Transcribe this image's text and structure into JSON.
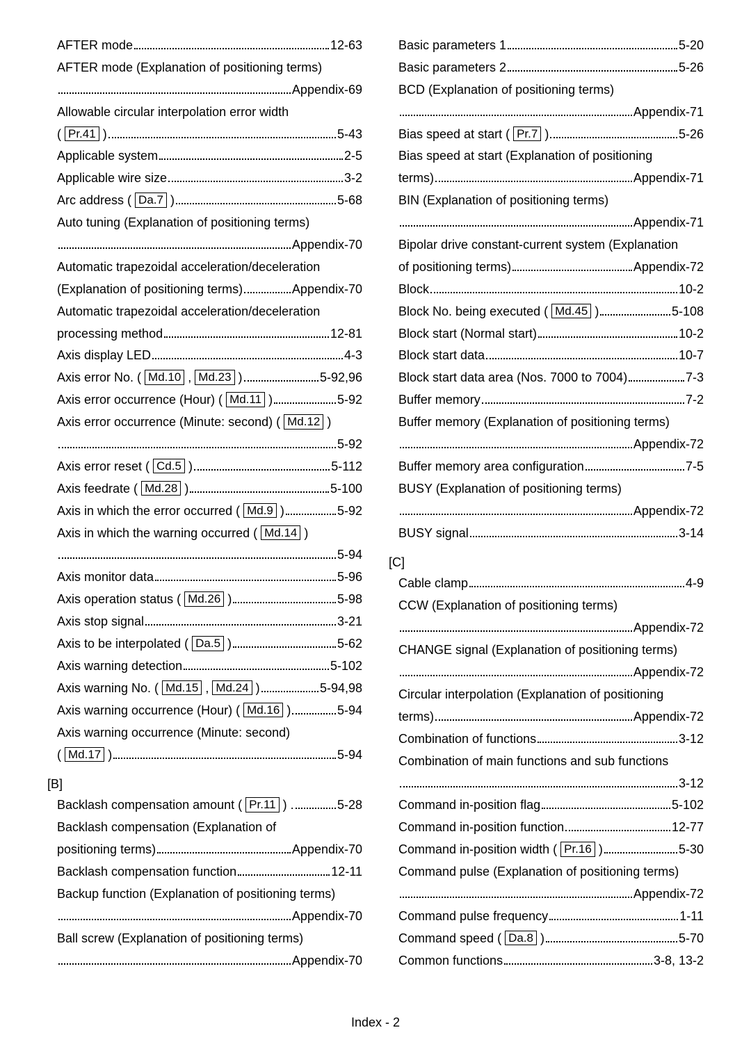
{
  "left": {
    "entries": [
      {
        "type": "row",
        "label": "AFTER mode",
        "page": "12-63"
      },
      {
        "type": "cont",
        "text": "AFTER mode (Explanation of positioning terms)"
      },
      {
        "type": "row",
        "label": "",
        "page": "Appendix-69"
      },
      {
        "type": "cont",
        "text": "Allowable circular interpolation error width"
      },
      {
        "type": "row",
        "label": "( [[Pr.41]] )",
        "page": "5-43"
      },
      {
        "type": "row",
        "label": "Applicable system",
        "page": "2-5"
      },
      {
        "type": "row",
        "label": "Applicable wire size",
        "page": "3-2"
      },
      {
        "type": "row",
        "label": "Arc address ( [[Da.7]] )",
        "page": "5-68"
      },
      {
        "type": "cont",
        "text": "Auto tuning (Explanation of positioning terms)"
      },
      {
        "type": "row",
        "label": "",
        "page": "Appendix-70"
      },
      {
        "type": "cont",
        "text": "Automatic trapezoidal acceleration/deceleration"
      },
      {
        "type": "row",
        "label": "(Explanation of positioning terms)",
        "page": "Appendix-70",
        "tight": true
      },
      {
        "type": "cont",
        "text": "Automatic trapezoidal acceleration/deceleration"
      },
      {
        "type": "row",
        "label": "processing method",
        "page": "12-81"
      },
      {
        "type": "row",
        "label": "Axis display LED",
        "page": "4-3"
      },
      {
        "type": "row",
        "label": "Axis error No. ( [[Md.10]] , [[Md.23]] )",
        "page": "5-92,96"
      },
      {
        "type": "row",
        "label": "Axis error occurrence (Hour) ( [[Md.11]] )",
        "page": "5-92"
      },
      {
        "type": "cont",
        "text": "Axis error occurrence (Minute: second) ( [[Md.12]] )"
      },
      {
        "type": "row",
        "label": "",
        "page": "5-92"
      },
      {
        "type": "row",
        "label": "Axis error reset ( [[Cd.5]] )",
        "page": "5-112"
      },
      {
        "type": "row",
        "label": "Axis feedrate ( [[Md.28]] )",
        "page": "5-100"
      },
      {
        "type": "row",
        "label": "Axis in which the error occurred ( [[Md.9]] )",
        "page": "5-92",
        "tight": true
      },
      {
        "type": "cont",
        "text": "Axis in which the warning occurred ( [[Md.14]] )"
      },
      {
        "type": "row",
        "label": "",
        "page": "5-94"
      },
      {
        "type": "row",
        "label": "Axis monitor data",
        "page": "5-96"
      },
      {
        "type": "row",
        "label": "Axis operation status ( [[Md.26]] )",
        "page": "5-98"
      },
      {
        "type": "row",
        "label": "Axis stop signal",
        "page": "3-21"
      },
      {
        "type": "row",
        "label": "Axis to be interpolated ( [[Da.5]] )",
        "page": "5-62"
      },
      {
        "type": "row",
        "label": "Axis warning detection",
        "page": "5-102"
      },
      {
        "type": "row",
        "label": "Axis warning No. ( [[Md.15]] , [[Md.24]] )",
        "page": "5-94,98"
      },
      {
        "type": "row",
        "label": "Axis warning occurrence (Hour) ( [[Md.16]] )",
        "page": "5-94",
        "tight": true
      },
      {
        "type": "cont",
        "text": "Axis warning occurrence (Minute: second)"
      },
      {
        "type": "row",
        "label": "( [[Md.17]] )",
        "page": "5-94"
      }
    ],
    "section_b": "[B]",
    "b_entries": [
      {
        "type": "row",
        "label": "Backlash compensation amount ( [[Pr.11]] ) .",
        "page": "5-28",
        "tight": true
      },
      {
        "type": "cont",
        "text": "Backlash compensation (Explanation of"
      },
      {
        "type": "row",
        "label": "positioning terms)",
        "page": "Appendix-70"
      },
      {
        "type": "row",
        "label": "Backlash compensation function",
        "page": "12-11"
      },
      {
        "type": "cont",
        "text": "Backup function (Explanation of positioning terms)"
      },
      {
        "type": "row",
        "label": "",
        "page": "Appendix-70"
      },
      {
        "type": "cont",
        "text": "Ball screw (Explanation of positioning terms)"
      },
      {
        "type": "row",
        "label": "",
        "page": "Appendix-70"
      }
    ]
  },
  "right": {
    "entries": [
      {
        "type": "row",
        "label": "Basic parameters 1",
        "page": "5-20"
      },
      {
        "type": "row",
        "label": "Basic parameters 2",
        "page": "5-26"
      },
      {
        "type": "cont",
        "text": "BCD (Explanation of positioning terms)"
      },
      {
        "type": "row",
        "label": "",
        "page": "Appendix-71"
      },
      {
        "type": "row",
        "label": "Bias speed at start ( [[Pr.7]] )",
        "page": "5-26"
      },
      {
        "type": "cont",
        "text": "Bias speed at start (Explanation of positioning"
      },
      {
        "type": "row",
        "label": "terms)",
        "page": "Appendix-71"
      },
      {
        "type": "cont",
        "text": "BIN (Explanation of positioning terms)"
      },
      {
        "type": "row",
        "label": "",
        "page": "Appendix-71"
      },
      {
        "type": "cont",
        "text": "Bipolar drive constant-current system (Explanation"
      },
      {
        "type": "row",
        "label": "of positioning terms)",
        "page": "Appendix-72"
      },
      {
        "type": "row",
        "label": "Block",
        "page": "10-2"
      },
      {
        "type": "row",
        "label": "Block No. being executed ( [[Md.45]] )",
        "page": "5-108"
      },
      {
        "type": "row",
        "label": "Block start (Normal start)",
        "page": "10-2"
      },
      {
        "type": "row",
        "label": "Block start data",
        "page": "10-7"
      },
      {
        "type": "row",
        "label": "Block start data area (Nos. 7000 to 7004)",
        "page": "7-3"
      },
      {
        "type": "row",
        "label": "Buffer memory",
        "page": "7-2"
      },
      {
        "type": "cont",
        "text": "Buffer memory (Explanation of positioning terms)"
      },
      {
        "type": "row",
        "label": "",
        "page": "Appendix-72"
      },
      {
        "type": "row",
        "label": "Buffer memory area configuration",
        "page": "7-5"
      },
      {
        "type": "cont",
        "text": "BUSY (Explanation of positioning terms)"
      },
      {
        "type": "row",
        "label": "",
        "page": "Appendix-72"
      },
      {
        "type": "row",
        "label": "BUSY signal",
        "page": "3-14"
      }
    ],
    "section_c": "[C]",
    "c_entries": [
      {
        "type": "row",
        "label": "Cable clamp",
        "page": "4-9"
      },
      {
        "type": "cont",
        "text": "CCW (Explanation of positioning terms)"
      },
      {
        "type": "row",
        "label": "",
        "page": "Appendix-72"
      },
      {
        "type": "cont",
        "text": "CHANGE signal (Explanation of positioning terms)"
      },
      {
        "type": "row",
        "label": "",
        "page": "Appendix-72"
      },
      {
        "type": "cont",
        "text": "Circular interpolation (Explanation of positioning"
      },
      {
        "type": "row",
        "label": "terms)",
        "page": "Appendix-72"
      },
      {
        "type": "row",
        "label": "Combination of functions",
        "page": "3-12"
      },
      {
        "type": "cont",
        "text": "Combination of main functions and sub functions"
      },
      {
        "type": "row",
        "label": "",
        "page": "3-12"
      },
      {
        "type": "row",
        "label": "Command in-position flag",
        "page": "5-102"
      },
      {
        "type": "row",
        "label": "Command in-position function",
        "page": "12-77"
      },
      {
        "type": "row",
        "label": "Command in-position width ( [[Pr.16]] )",
        "page": "5-30"
      },
      {
        "type": "cont",
        "text": "Command pulse (Explanation of positioning terms)"
      },
      {
        "type": "row",
        "label": "",
        "page": "Appendix-72"
      },
      {
        "type": "row",
        "label": "Command pulse frequency",
        "page": "1-11"
      },
      {
        "type": "row",
        "label": "Command speed ( [[Da.8]] )",
        "page": "5-70"
      },
      {
        "type": "row",
        "label": "Common functions",
        "page": "3-8, 13-2"
      }
    ]
  },
  "footer": "Index - 2"
}
